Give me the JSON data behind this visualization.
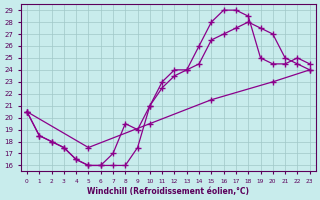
{
  "bg_color": "#c8ecec",
  "line_color": "#8b008b",
  "grid_color": "#a0c8c8",
  "xlabel": "Windchill (Refroidissement éolien,°C)",
  "xlim": [
    -0.5,
    23.5
  ],
  "ylim": [
    15.5,
    29.5
  ],
  "xticks": [
    0,
    1,
    2,
    3,
    4,
    5,
    6,
    7,
    8,
    9,
    10,
    11,
    12,
    13,
    14,
    15,
    16,
    17,
    18,
    19,
    20,
    21,
    22,
    23
  ],
  "yticks": [
    16,
    17,
    18,
    19,
    20,
    21,
    22,
    23,
    24,
    25,
    26,
    27,
    28,
    29
  ],
  "series": [
    {
      "x": [
        0,
        1,
        2,
        3,
        4,
        5,
        6,
        7,
        8,
        9,
        10,
        11,
        12,
        13,
        14,
        15,
        16,
        17,
        18,
        19,
        20,
        21,
        22,
        23
      ],
      "y": [
        20.5,
        18.5,
        18.0,
        17.5,
        16.5,
        16.0,
        16.0,
        16.0,
        16.0,
        17.5,
        21.0,
        23.0,
        24.0,
        24.0,
        26.0,
        28.0,
        29.0,
        29.0,
        28.5,
        25.0,
        24.5,
        24.5,
        25.0,
        24.5
      ]
    },
    {
      "x": [
        0,
        1,
        2,
        3,
        4,
        5,
        6,
        7,
        8,
        9,
        10,
        11,
        12,
        13,
        14,
        15,
        16,
        17,
        18,
        19,
        20,
        21,
        22,
        23
      ],
      "y": [
        20.5,
        18.5,
        18.0,
        17.5,
        16.5,
        16.0,
        16.0,
        17.0,
        19.5,
        19.0,
        21.0,
        22.5,
        23.5,
        24.0,
        24.5,
        26.5,
        27.0,
        27.5,
        28.0,
        27.5,
        27.0,
        25.0,
        24.5,
        24.0
      ]
    },
    {
      "x": [
        0,
        5,
        10,
        15,
        20,
        23
      ],
      "y": [
        20.5,
        17.5,
        19.5,
        21.5,
        23.0,
        24.0
      ]
    }
  ],
  "figsize": [
    3.2,
    2.0
  ],
  "dpi": 100
}
